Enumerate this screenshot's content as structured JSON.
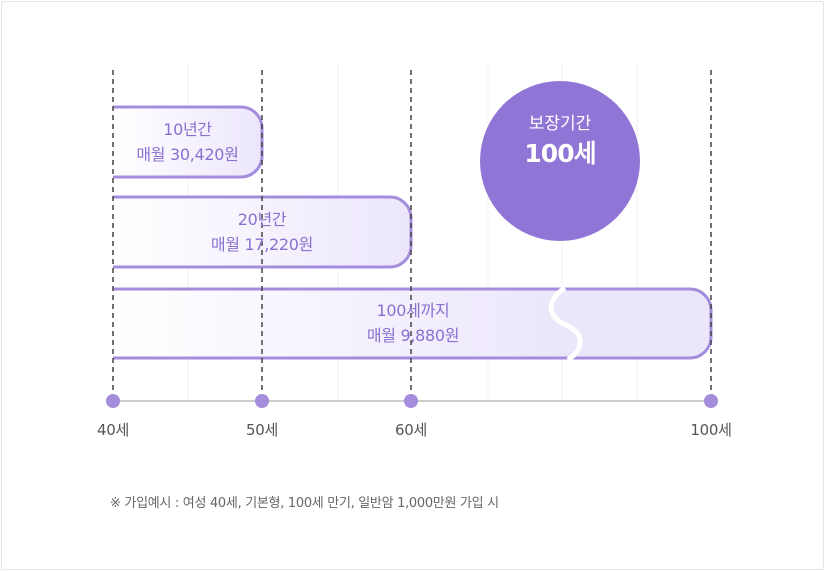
{
  "coverage_circle": {
    "label": "보장기간",
    "value": "100세",
    "color": "#8f76d6"
  },
  "axis_ticks": [
    {
      "label": "40세",
      "age": 40
    },
    {
      "label": "50세",
      "age": 50
    },
    {
      "label": "60세",
      "age": 60
    },
    {
      "label": "100세",
      "age": 100
    }
  ],
  "plans": [
    {
      "term": "10년간",
      "premium": "매월 30,420원",
      "start_age": 40,
      "end_age": 50
    },
    {
      "term": "20년간",
      "premium": "매월 17,220원",
      "start_age": 40,
      "end_age": 60
    },
    {
      "term": "100세까지",
      "premium": "매월 9,880원",
      "start_age": 40,
      "end_age": 100
    }
  ],
  "footnote": "※  가입예시 : 여성 40세, 기본형, 100세 만기, 일반암 1,000만원 가입 시",
  "colors": {
    "accent": "#8f76d6",
    "bar_border": "#a58ddd",
    "bar_fill_light": "#ffffff",
    "bar_fill_dark": "#ece6fb",
    "axis_line": "#cccccc",
    "dashed_line": "#444444",
    "text": "#8b70cf"
  }
}
